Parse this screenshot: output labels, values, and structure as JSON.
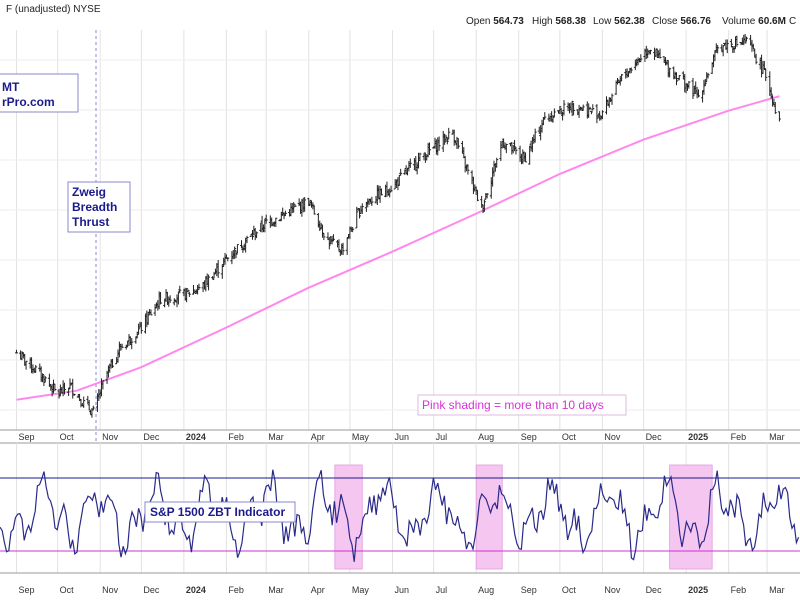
{
  "header": {
    "title": "F (unadjusted)  NYSE",
    "open_label": "Open",
    "open": "564.73",
    "high_label": "High",
    "high": "568.38",
    "low_label": "Low",
    "low": "562.38",
    "close_label": "Close",
    "close": "566.76",
    "volume_label": "Volume",
    "volume": "60.6M",
    "tail": "C"
  },
  "logo": {
    "line1": "MT",
    "line2": "rPro.com"
  },
  "annotations": {
    "zweig_line1": "Zweig",
    "zweig_line2": "Breadth",
    "zweig_line3": "Thrust",
    "indicator_label": "S&P 1500 ZBT Indicator",
    "pink_note": "Pink shading = more than 10 days"
  },
  "colors": {
    "price": "#222222",
    "ma": "#ff88ee",
    "indicator": "#2a2a8a",
    "upper_line": "#1a1a8c",
    "lower_line": "#cc33cc",
    "shade": "#f5c6f0",
    "grid": "#e2e2e2",
    "dashed": "#8888cc"
  },
  "chart_data": [
    {
      "type": "ohlc",
      "panel": "price",
      "x_tick_labels": [
        "Sep",
        "Oct",
        "Nov",
        "Dec",
        "2024",
        "Feb",
        "Mar",
        "Apr",
        "May",
        "Jun",
        "Jul",
        "Aug",
        "Sep",
        "Oct",
        "Nov",
        "Dec",
        "2025",
        "Feb",
        "Mar"
      ],
      "x_tick_bold": [
        "2024",
        "2025"
      ],
      "close_path": [
        [
          "2023-09-01",
          438
        ],
        [
          "2023-09-10",
          432
        ],
        [
          "2023-09-20",
          425
        ],
        [
          "2023-10-01",
          415
        ],
        [
          "2023-10-10",
          420
        ],
        [
          "2023-10-20",
          410
        ],
        [
          "2023-10-27",
          405
        ],
        [
          "2023-11-05",
          425
        ],
        [
          "2023-11-15",
          440
        ],
        [
          "2023-12-01",
          452
        ],
        [
          "2023-12-15",
          468
        ],
        [
          "2024-01-01",
          470
        ],
        [
          "2024-01-15",
          475
        ],
        [
          "2024-02-01",
          490
        ],
        [
          "2024-02-15",
          500
        ],
        [
          "2024-03-01",
          510
        ],
        [
          "2024-03-15",
          515
        ],
        [
          "2024-04-01",
          522
        ],
        [
          "2024-04-15",
          500
        ],
        [
          "2024-04-25",
          495
        ],
        [
          "2024-05-10",
          520
        ],
        [
          "2024-06-01",
          530
        ],
        [
          "2024-06-20",
          545
        ],
        [
          "2024-07-15",
          560
        ],
        [
          "2024-07-25",
          540
        ],
        [
          "2024-08-05",
          518
        ],
        [
          "2024-08-20",
          555
        ],
        [
          "2024-09-05",
          545
        ],
        [
          "2024-09-20",
          568
        ],
        [
          "2024-10-10",
          575
        ],
        [
          "2024-10-31",
          570
        ],
        [
          "2024-11-15",
          590
        ],
        [
          "2024-12-05",
          607
        ],
        [
          "2024-12-20",
          595
        ],
        [
          "2025-01-10",
          580
        ],
        [
          "2025-01-25",
          608
        ],
        [
          "2025-02-15",
          610
        ],
        [
          "2025-03-01",
          590
        ],
        [
          "2025-03-10",
          565
        ]
      ],
      "moving_average": {
        "label": "",
        "values": [
          [
            "2023-09-01",
            412
          ],
          [
            "2023-10-15",
            417
          ],
          [
            "2023-12-01",
            430
          ],
          [
            "2024-02-01",
            452
          ],
          [
            "2024-04-01",
            474
          ],
          [
            "2024-06-01",
            494
          ],
          [
            "2024-08-01",
            515
          ],
          [
            "2024-10-01",
            537
          ],
          [
            "2024-12-01",
            556
          ],
          [
            "2025-02-01",
            572
          ],
          [
            "2025-03-10",
            580
          ]
        ]
      }
    },
    {
      "type": "line",
      "panel": "indicator",
      "series": [
        {
          "name": "S&P 1500 ZBT Indicator"
        }
      ],
      "upper_threshold_line": true,
      "lower_threshold_line": true,
      "shaded_periods": [
        [
          "2024-04-20",
          "2024-05-10"
        ],
        [
          "2024-08-01",
          "2024-08-20"
        ],
        [
          "2024-12-20",
          "2025-01-20"
        ]
      ],
      "x_tick_labels": [
        "Sep",
        "Oct",
        "Nov",
        "Dec",
        "2024",
        "Feb",
        "Mar",
        "Apr",
        "May",
        "Jun",
        "Jul",
        "Aug",
        "Sep",
        "Oct",
        "Nov",
        "Dec",
        "2025",
        "Feb",
        "Mar"
      ]
    }
  ],
  "zweig_signal_date": "2023-11-01"
}
